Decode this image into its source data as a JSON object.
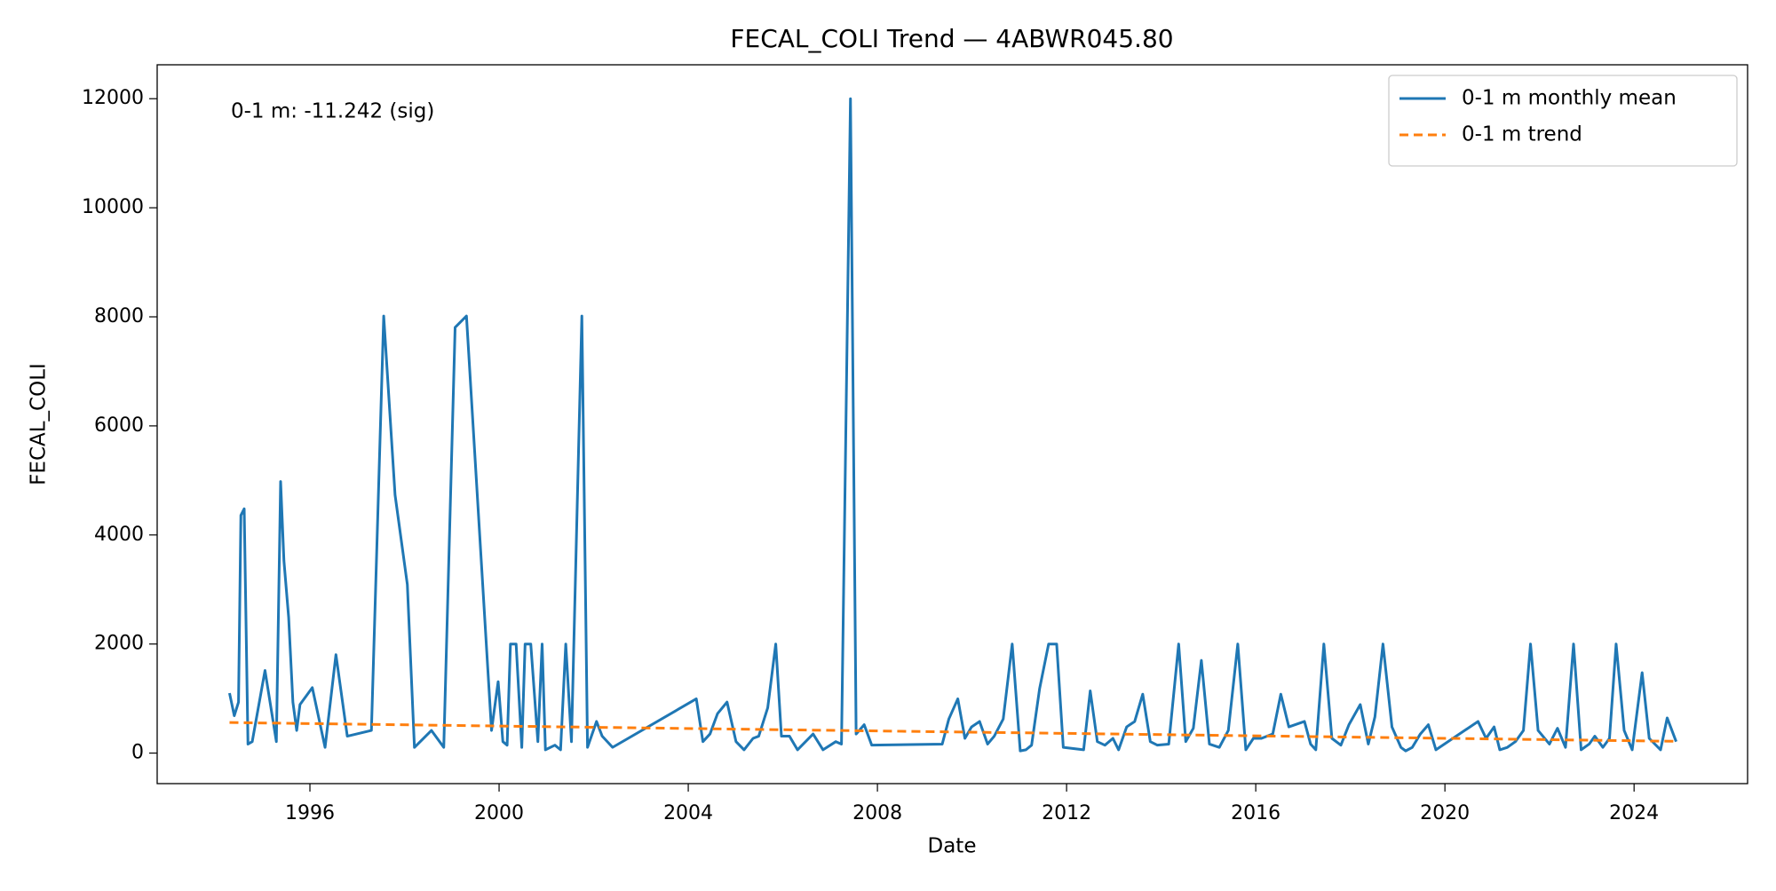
{
  "chart_data": {
    "type": "line",
    "title": "FECAL_COLI Trend — 4ABWR045.80",
    "xlabel": "Date",
    "ylabel": "FECAL_COLI",
    "annotation": "0-1 m: -11.242 (sig)",
    "legend": "upper right",
    "grid": false,
    "xlim": [
      1992.77,
      2026.4
    ],
    "xticks": [
      1996,
      2000,
      2004,
      2008,
      2012,
      2016,
      2020,
      2024
    ],
    "ylim": [
      -560,
      12622
    ],
    "yticks": [
      0,
      2000,
      4000,
      6000,
      8000,
      10000,
      12000
    ],
    "series": [
      {
        "name": "0-1 m monthly mean",
        "color": "#1f77b4",
        "dash": "solid",
        "x": [
          1994.3,
          1994.4,
          1994.49,
          1994.54,
          1994.61,
          1994.69,
          1994.78,
          1995.05,
          1995.29,
          1995.38,
          1995.45,
          1995.55,
          1995.64,
          1995.72,
          1995.79,
          1996.05,
          1996.32,
          1996.55,
          1996.79,
          1997.3,
          1997.56,
          1997.8,
          1998.06,
          1998.21,
          1998.57,
          1998.83,
          1999.07,
          1999.31,
          1999.84,
          1999.98,
          2000.08,
          2000.17,
          2000.24,
          2000.36,
          2000.48,
          2000.55,
          2000.67,
          2000.82,
          2000.91,
          2000.98,
          2001.18,
          2001.3,
          2001.41,
          2001.53,
          2001.75,
          2001.87,
          2002.06,
          2002.18,
          2002.4,
          2004.17,
          2004.31,
          2004.46,
          2004.62,
          2004.82,
          2005.01,
          2005.18,
          2005.37,
          2005.49,
          2005.68,
          2005.85,
          2005.97,
          2006.14,
          2006.31,
          2006.64,
          2006.85,
          2007.12,
          2007.24,
          2007.43,
          2007.55,
          2007.72,
          2007.88,
          2009.37,
          2009.51,
          2009.7,
          2009.85,
          2009.99,
          2010.16,
          2010.33,
          2010.47,
          2010.66,
          2010.85,
          2011.02,
          2011.14,
          2011.26,
          2011.43,
          2011.62,
          2011.79,
          2011.93,
          2012.36,
          2012.5,
          2012.65,
          2012.81,
          2012.98,
          2013.1,
          2013.27,
          2013.44,
          2013.61,
          2013.77,
          2013.92,
          2014.16,
          2014.37,
          2014.52,
          2014.68,
          2014.85,
          2015.02,
          2015.23,
          2015.42,
          2015.62,
          2015.79,
          2015.95,
          2016.12,
          2016.36,
          2016.53,
          2016.7,
          2017.03,
          2017.16,
          2017.27,
          2017.44,
          2017.61,
          2017.8,
          2017.97,
          2018.21,
          2018.38,
          2018.52,
          2018.69,
          2018.88,
          2019.07,
          2019.17,
          2019.31,
          2019.48,
          2019.65,
          2019.81,
          2020.7,
          2020.87,
          2021.04,
          2021.16,
          2021.32,
          2021.49,
          2021.66,
          2021.81,
          2021.97,
          2022.21,
          2022.38,
          2022.55,
          2022.72,
          2022.88,
          2023.05,
          2023.17,
          2023.34,
          2023.48,
          2023.62,
          2023.79,
          2023.96,
          2024.17,
          2024.32,
          2024.56,
          2024.7,
          2024.89
        ],
        "values": [
          1100,
          685,
          935,
          4360,
          4480,
          165,
          210,
          1515,
          210,
          4980,
          3530,
          2490,
          935,
          415,
          890,
          1200,
          105,
          1805,
          310,
          415,
          8015,
          4735,
          3090,
          105,
          415,
          105,
          7805,
          8015,
          415,
          1310,
          210,
          145,
          2000,
          2000,
          105,
          2000,
          2000,
          210,
          2000,
          60,
          145,
          60,
          2000,
          210,
          8015,
          105,
          580,
          310,
          105,
          995,
          210,
          350,
          725,
          935,
          210,
          60,
          270,
          310,
          830,
          2000,
          310,
          310,
          60,
          350,
          60,
          210,
          165,
          12000,
          350,
          520,
          145,
          165,
          625,
          995,
          270,
          480,
          580,
          165,
          310,
          625,
          2000,
          40,
          60,
          145,
          1185,
          2000,
          2000,
          105,
          60,
          1140,
          210,
          145,
          270,
          60,
          480,
          580,
          1080,
          210,
          145,
          165,
          2000,
          210,
          455,
          1700,
          165,
          105,
          415,
          2000,
          60,
          270,
          270,
          350,
          1080,
          480,
          580,
          165,
          60,
          2000,
          270,
          145,
          520,
          890,
          165,
          665,
          2000,
          480,
          105,
          40,
          105,
          350,
          520,
          60,
          580,
          270,
          480,
          60,
          105,
          210,
          415,
          2000,
          415,
          165,
          455,
          105,
          2000,
          60,
          165,
          310,
          105,
          270,
          2000,
          415,
          60,
          1475,
          270,
          60,
          645,
          210
        ]
      },
      {
        "name": "0-1 m trend",
        "color": "#ff7f0e",
        "dash": "dashed",
        "x": [
          1994.3,
          2024.89
        ],
        "values": [
          560,
          216
        ]
      }
    ]
  }
}
